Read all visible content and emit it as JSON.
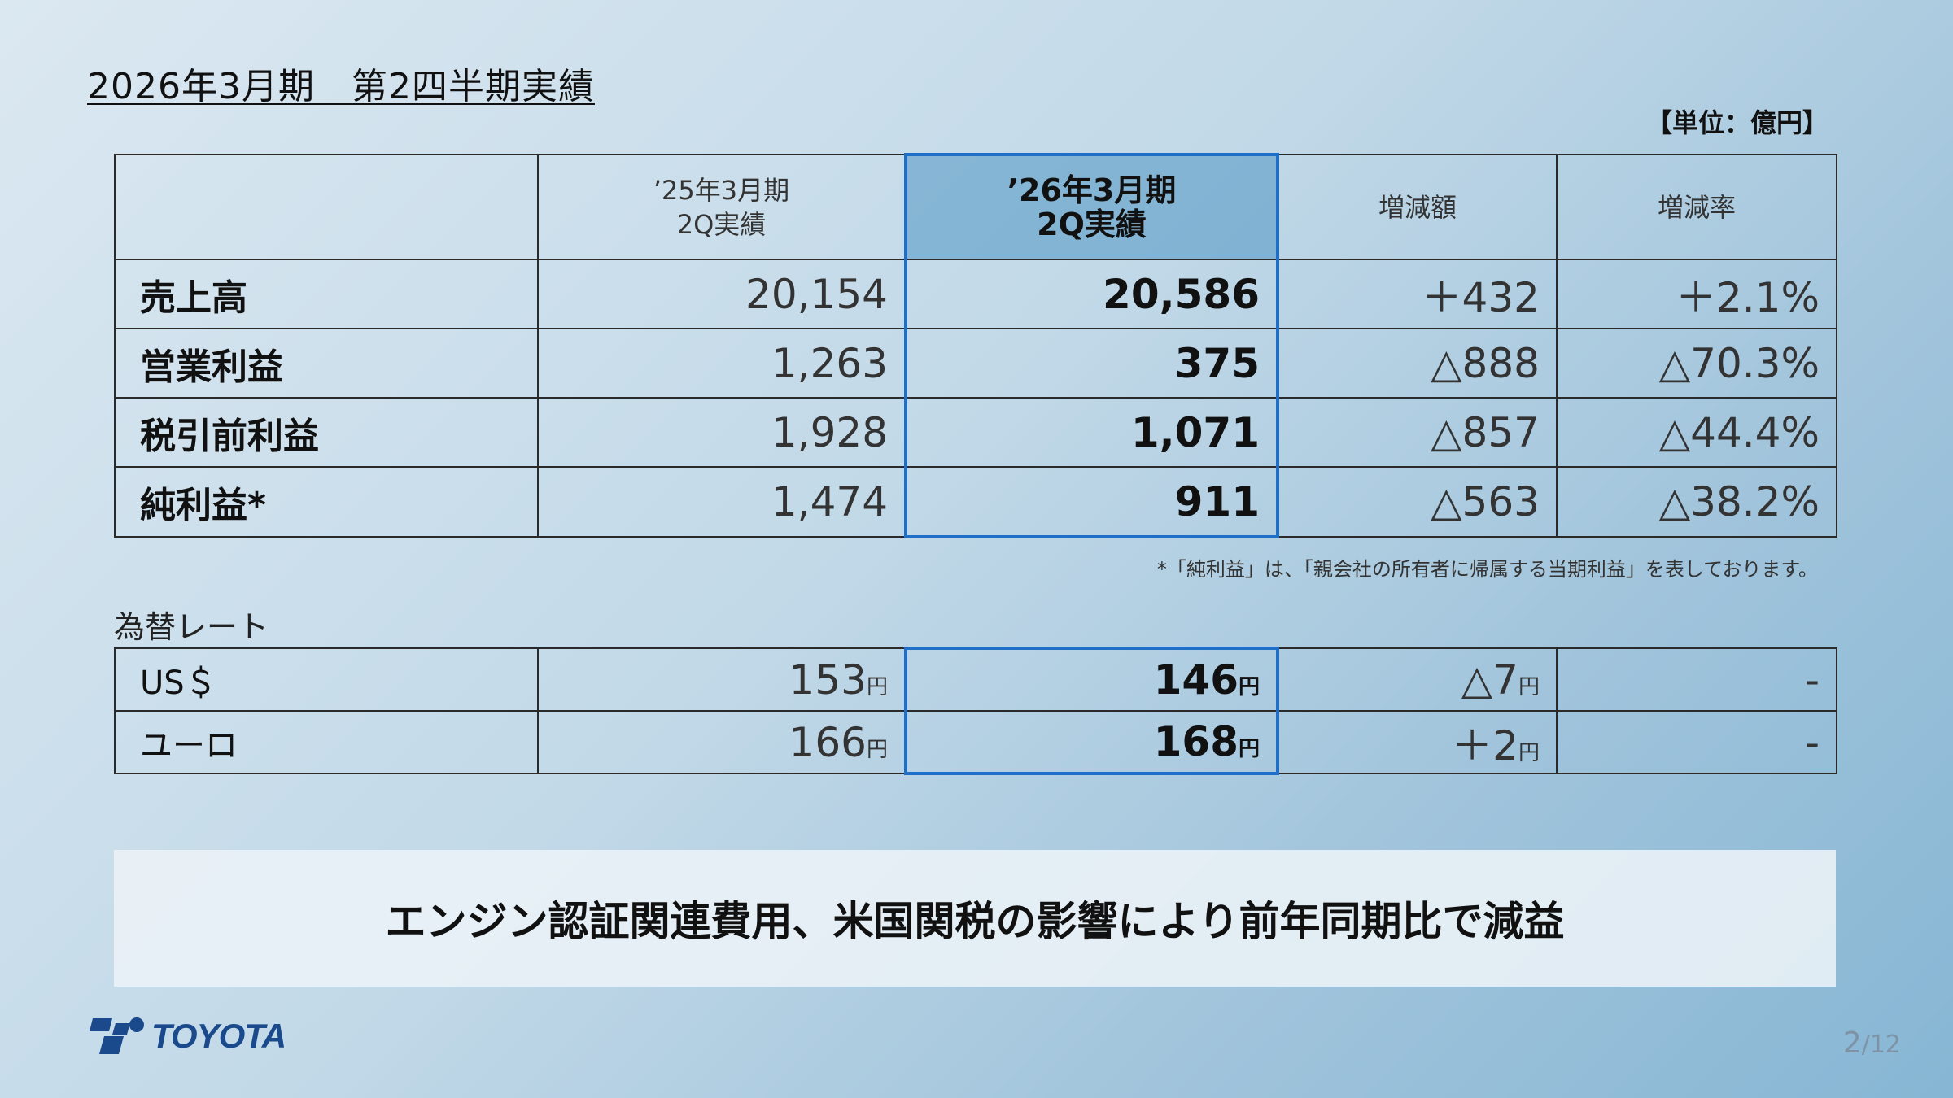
{
  "title": "2026年3月期　第2四半期実績",
  "unit": "【単位：億円】",
  "table": {
    "headers": {
      "prev_line1": "’25年3月期",
      "prev_line2": "2Q実績",
      "curr_line1": "’26年3月期",
      "curr_line2": "2Q実績",
      "diff": "増減額",
      "rate": "増減率"
    },
    "rows": [
      {
        "label": "売上高",
        "prev": "20,154",
        "curr": "20,586",
        "diff": "＋432",
        "rate": "＋2.1%"
      },
      {
        "label": "営業利益",
        "prev": "1,263",
        "curr": "375",
        "diff": "△888",
        "rate": "△70.3%"
      },
      {
        "label": "税引前利益",
        "prev": "1,928",
        "curr": "1,071",
        "diff": "△857",
        "rate": "△44.4%"
      },
      {
        "label": "純利益*",
        "prev": "1,474",
        "curr": "911",
        "diff": "△563",
        "rate": "△38.2%"
      }
    ]
  },
  "footnote": "*「純利益」は、「親会社の所有者に帰属する当期利益」を表しております。",
  "fx": {
    "label": "為替レート",
    "yen": "円",
    "rows": [
      {
        "label": "US＄",
        "prev": "153",
        "curr": "146",
        "diff": "△7",
        "rate": "-"
      },
      {
        "label": "ユーロ",
        "prev": "166",
        "curr": "168",
        "diff": "＋2",
        "rate": "-"
      }
    ]
  },
  "banner": "エンジン認証関連費用、米国関税の影響により前年同期比で減益",
  "logo_text": "TOYOTA",
  "page": {
    "current": "2",
    "total": "/12"
  },
  "colors": {
    "highlight_border": "#1f6fc8",
    "logo": "#1a4a8c"
  }
}
